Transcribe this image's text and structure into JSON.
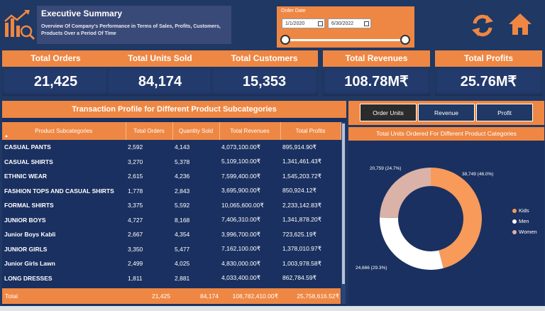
{
  "header": {
    "title": "Executive Summary",
    "subtitle": "Overview Of Company's Performance in Terms of Sales, Profits, Customers, Products Over a Period Of Time"
  },
  "date_filter": {
    "label": "Order Date",
    "start": "1/1/2020",
    "end": "6/30/2022",
    "range_fraction": [
      0,
      1
    ]
  },
  "icons": {
    "logo": "chart-magnify-icon",
    "refresh": "refresh-icon",
    "home": "home-icon"
  },
  "kpis": [
    {
      "label": "Total Orders",
      "value": "21,425"
    },
    {
      "label": "Total Units Sold",
      "value": "84,174"
    },
    {
      "label": "Total Customers",
      "value": "15,353"
    },
    {
      "label": "Total Revenues",
      "value": "108.78M₹"
    },
    {
      "label": "Total Profits",
      "value": "25.76M₹"
    }
  ],
  "table": {
    "title": "Transaction Profile for Different Product Subcategories",
    "sort_indicator": "▲",
    "columns": [
      "Product Subcategories",
      "Total Orders",
      "Quantity Sold",
      "Total Revenues",
      "Total Profits"
    ],
    "rows": [
      [
        "CASUAL PANTS",
        "2,592",
        "4,143",
        "4,073,100.00₹",
        "895,914.90₹"
      ],
      [
        "CASUAL SHIRTS",
        "3,270",
        "5,378",
        "5,109,100.00₹",
        "1,341,461.43₹"
      ],
      [
        "ETHNIC WEAR",
        "2,615",
        "4,236",
        "7,599,400.00₹",
        "1,545,203.72₹"
      ],
      [
        "FASHION TOPS AND CASUAL SHIRTS",
        "1,778",
        "2,843",
        "3,695,900.00₹",
        "850,924.12₹"
      ],
      [
        "FORMAL SHIRTS",
        "3,375",
        "5,592",
        "10,065,600.00₹",
        "2,233,142.83₹"
      ],
      [
        "JUNIOR BOYS",
        "4,727",
        "8,168",
        "7,406,310.00₹",
        "1,341,878.20₹"
      ],
      [
        "Junior Boys Kabli",
        "2,667",
        "4,354",
        "3,996,700.00₹",
        "723,625.19₹"
      ],
      [
        "JUNIOR GIRLS",
        "3,350",
        "5,477",
        "7,162,100.00₹",
        "1,378,010.97₹"
      ],
      [
        "Junior Girls Lawn",
        "2,499",
        "4,025",
        "4,830,000.00₹",
        "1,003,978.58₹"
      ],
      [
        "LONG DRESSES",
        "1,811",
        "2,881",
        "4,033,400.00₹",
        "862,784.59₹"
      ]
    ],
    "total": {
      "label": "Total",
      "orders": "21,425",
      "qty": "84,174",
      "revenues": "108,782,410.00₹",
      "profits": "25,758,616.52₹"
    }
  },
  "chart_buttons": [
    "Order Units",
    "Revenue",
    "Profit"
  ],
  "active_chart_button": "Order Units",
  "chart_data": {
    "type": "pie",
    "title": "Total Units Ordered For Different Product Categories",
    "categories": [
      "Kids",
      "Men",
      "Women"
    ],
    "values": [
      38749,
      24666,
      20759
    ],
    "labels": [
      "38,749 (46.0%)",
      "24,666 (29.3%)",
      "20,759 (24.7%)"
    ],
    "colors": [
      "#f79a5a",
      "#ffffff",
      "#dbb2a8"
    ],
    "legend": "right",
    "donut": true
  }
}
